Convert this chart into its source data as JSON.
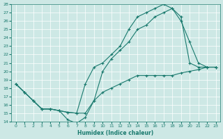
{
  "xlabel": "Humidex (Indice chaleur)",
  "background_color": "#cde8e5",
  "line_color": "#1a7a6e",
  "xlim": [
    -0.5,
    23.5
  ],
  "ylim": [
    14,
    28
  ],
  "xticks": [
    0,
    1,
    2,
    3,
    4,
    5,
    6,
    7,
    8,
    9,
    10,
    11,
    12,
    13,
    14,
    15,
    16,
    17,
    18,
    19,
    20,
    21,
    22,
    23
  ],
  "yticks": [
    14,
    15,
    16,
    17,
    18,
    19,
    20,
    21,
    22,
    23,
    24,
    25,
    26,
    27,
    28
  ],
  "line1_x": [
    0,
    1,
    2,
    3,
    4,
    5,
    6,
    7,
    8,
    9,
    10,
    11,
    12,
    13,
    14,
    15,
    16,
    17,
    18,
    19,
    20,
    21,
    22,
    23
  ],
  "line1_y": [
    18.5,
    17.5,
    16.5,
    15.5,
    15.5,
    15.3,
    15.1,
    15.0,
    18.5,
    20.5,
    21.0,
    22.0,
    23.0,
    25.0,
    26.5,
    27.0,
    27.5,
    28.0,
    27.5,
    26.5,
    21.0,
    20.5,
    20.5,
    20.5
  ],
  "line2_x": [
    0,
    1,
    2,
    3,
    4,
    5,
    6,
    7,
    8,
    9,
    10,
    11,
    12,
    13,
    14,
    15,
    16,
    17,
    18,
    19,
    20,
    21,
    22,
    23
  ],
  "line2_y": [
    18.5,
    17.5,
    16.5,
    15.5,
    15.5,
    15.3,
    15.1,
    15.0,
    15.0,
    16.5,
    20.0,
    21.5,
    22.5,
    23.5,
    25.0,
    25.5,
    26.5,
    27.0,
    27.5,
    26.0,
    23.5,
    21.0,
    20.5,
    20.5
  ],
  "line3_x": [
    0,
    1,
    2,
    3,
    4,
    5,
    6,
    7,
    8,
    9,
    10,
    11,
    12,
    13,
    14,
    15,
    16,
    17,
    18,
    19,
    20,
    21,
    22,
    23
  ],
  "line3_y": [
    18.5,
    17.5,
    16.5,
    15.5,
    15.5,
    15.3,
    14.2,
    13.8,
    14.5,
    16.5,
    17.5,
    18.0,
    18.5,
    19.0,
    19.5,
    19.5,
    19.5,
    19.5,
    19.5,
    19.8,
    20.0,
    20.2,
    20.5,
    20.5
  ]
}
